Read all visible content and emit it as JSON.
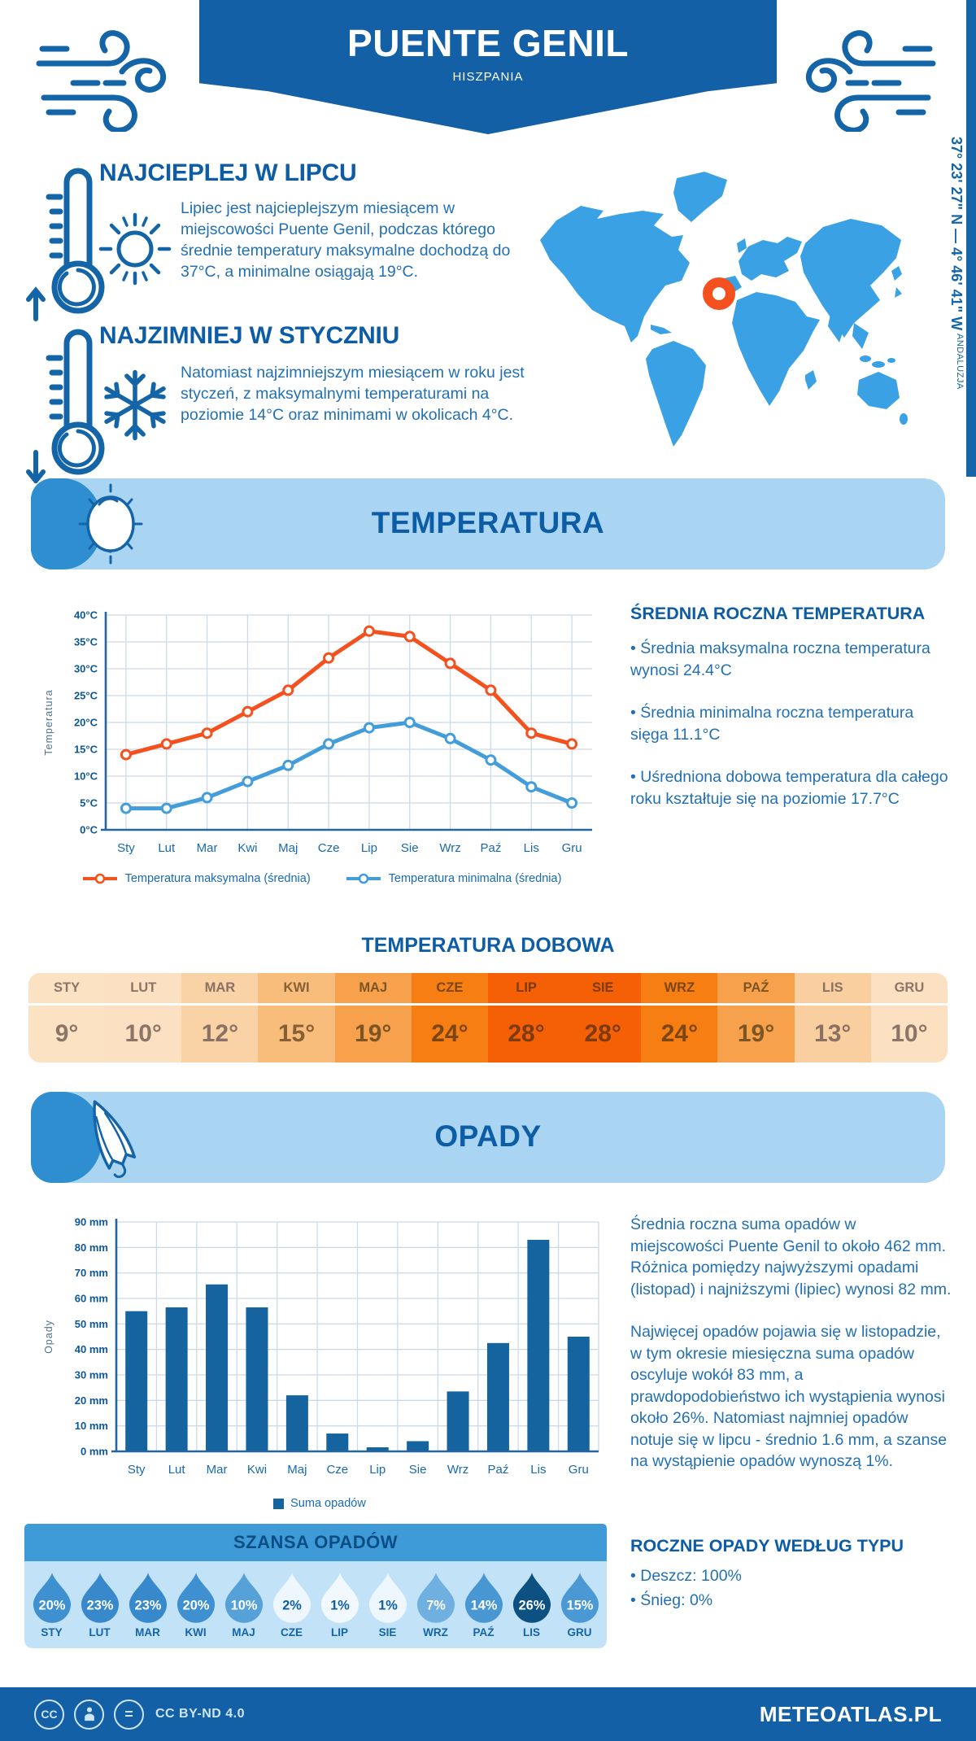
{
  "header": {
    "title": "PUENTE GENIL",
    "subtitle": "HISZPANIA"
  },
  "location": {
    "coordinates": "37° 23' 27\" N — 4° 46' 41\" W",
    "region": "ANDALUZJA"
  },
  "highlights": {
    "warm": {
      "title": "NAJCIEPLEJ W LIPCU",
      "text": "Lipiec jest najcieplejszym miesiącem w miejscowości Puente Genil, podczas którego średnie temperatury maksymalne dochodzą do 37°C, a minimalne osiągają 19°C."
    },
    "cold": {
      "title": "NAJZIMNIEJ W STYCZNIU",
      "text": "Natomiast najzimniejszym miesiącem w roku jest styczeń, z maksymalnymi temperaturami na poziomie 14°C oraz minimami w okolicach 4°C."
    }
  },
  "temperature": {
    "banner_title": "TEMPERATURA",
    "annual": {
      "title": "ŚREDNIA ROCZNA TEMPERATURA",
      "bullets": [
        "Średnia maksymalna roczna temperatura wynosi 24.4°C",
        "Średnia minimalna roczna temperatura sięga 11.1°C",
        "Uśredniona dobowa temperatura dla całego roku kształtuje się na poziomie 17.7°C"
      ]
    },
    "daily": {
      "title": "TEMPERATURA DOBOWA",
      "cells": [
        {
          "month": "STY",
          "value": "9°",
          "bg": "#fbe2c3",
          "fg": "#8a7566"
        },
        {
          "month": "LUT",
          "value": "10°",
          "bg": "#fbe1c1",
          "fg": "#8a7566"
        },
        {
          "month": "MAR",
          "value": "12°",
          "bg": "#f9d2a5",
          "fg": "#8a7163"
        },
        {
          "month": "KWI",
          "value": "15°",
          "bg": "#f8bd7b",
          "fg": "#875f35"
        },
        {
          "month": "MAJ",
          "value": "19°",
          "bg": "#f7a14d",
          "fg": "#7d5524"
        },
        {
          "month": "CZE",
          "value": "24°",
          "bg": "#f67e13",
          "fg": "#7c4612"
        },
        {
          "month": "LIP",
          "value": "28°",
          "bg": "#f55f05",
          "fg": "#7c3b0f"
        },
        {
          "month": "SIE",
          "value": "28°",
          "bg": "#f55f05",
          "fg": "#7c3b0f"
        },
        {
          "month": "WRZ",
          "value": "24°",
          "bg": "#f67e13",
          "fg": "#7c4612"
        },
        {
          "month": "PAŹ",
          "value": "19°",
          "bg": "#f7a14d",
          "fg": "#7d5524"
        },
        {
          "month": "LIS",
          "value": "13°",
          "bg": "#f9cf9f",
          "fg": "#8a7163"
        },
        {
          "month": "GRU",
          "value": "10°",
          "bg": "#fbe1c1",
          "fg": "#8a7566"
        }
      ]
    }
  },
  "precipitation": {
    "banner_title": "OPADY",
    "paragraphs": [
      "Średnia roczna suma opadów w miejscowości Puente Genil to około 462 mm. Różnica pomiędzy najwyższymi opadami (listopad) i najniższymi (lipiec) wynosi 82 mm.",
      "Najwięcej opadów pojawia się w listopadzie, w tym okresie miesięczna suma opadów oscyluje wokół 83 mm, a prawdopodobieństwo ich wystąpienia wynosi około 26%. Natomiast najmniej opadów notuje się w lipcu - średnio 1.6 mm, a szanse na wystąpienie opadów wynoszą 1%."
    ],
    "types": {
      "title": "ROCZNE OPADY WEDŁUG TYPU",
      "items": [
        "Deszcz: 100%",
        "Śnieg: 0%"
      ]
    },
    "chance": {
      "title": "SZANSA OPADÓW",
      "items": [
        {
          "month": "STY",
          "percent": "20%",
          "color": "#3e90d0",
          "text_color": "#ffffff"
        },
        {
          "month": "LUT",
          "percent": "23%",
          "color": "#3889cb",
          "text_color": "#ffffff"
        },
        {
          "month": "MAR",
          "percent": "23%",
          "color": "#3889cb",
          "text_color": "#ffffff"
        },
        {
          "month": "KWI",
          "percent": "20%",
          "color": "#3e90d0",
          "text_color": "#ffffff"
        },
        {
          "month": "MAJ",
          "percent": "10%",
          "color": "#55a1d8",
          "text_color": "#ffffff"
        },
        {
          "month": "CZE",
          "percent": "2%",
          "color": "#eef7fd",
          "text_color": "#0f5f9e"
        },
        {
          "month": "LIP",
          "percent": "1%",
          "color": "#f2f9fe",
          "text_color": "#0f5f9e"
        },
        {
          "month": "SIE",
          "percent": "1%",
          "color": "#eef7fd",
          "text_color": "#0f5f9e"
        },
        {
          "month": "WRZ",
          "percent": "7%",
          "color": "#6fb0e0",
          "text_color": "#ffffff"
        },
        {
          "month": "PAŹ",
          "percent": "14%",
          "color": "#4897d3",
          "text_color": "#ffffff"
        },
        {
          "month": "LIS",
          "percent": "26%",
          "color": "#0d5183",
          "text_color": "#ffffff"
        },
        {
          "month": "GRU",
          "percent": "15%",
          "color": "#4a99d4",
          "text_color": "#ffffff"
        }
      ]
    }
  },
  "chart_data": [
    {
      "type": "line",
      "title": "",
      "ylabel": "Temperatura",
      "categories": [
        "Sty",
        "Lut",
        "Mar",
        "Kwi",
        "Maj",
        "Cze",
        "Lip",
        "Sie",
        "Wrz",
        "Paź",
        "Lis",
        "Gru"
      ],
      "series": [
        {
          "name": "Temperatura maksymalna (średnia)",
          "color": "#f4511e",
          "values": [
            14,
            16,
            18,
            22,
            26,
            32,
            37,
            36,
            31,
            26,
            18,
            16
          ]
        },
        {
          "name": "Temperatura minimalna (średnia)",
          "color": "#449ddb",
          "values": [
            4,
            4,
            6,
            9,
            12,
            16,
            19,
            20,
            17,
            13,
            8,
            5
          ]
        }
      ],
      "ylim": [
        0,
        40
      ],
      "ytick_step": 5,
      "yunit": "°C",
      "grid": true,
      "legend_position": "bottom"
    },
    {
      "type": "bar",
      "title": "",
      "ylabel": "Opady",
      "legend": "Suma opadów",
      "categories": [
        "Sty",
        "Lut",
        "Mar",
        "Kwi",
        "Maj",
        "Cze",
        "Lip",
        "Sie",
        "Wrz",
        "Paź",
        "Lis",
        "Gru"
      ],
      "values": [
        55,
        56.5,
        65.5,
        56.5,
        22,
        7,
        1.6,
        4,
        23.5,
        42.5,
        83,
        45
      ],
      "ylim": [
        0,
        90
      ],
      "ytick_step": 10,
      "yunit": " mm",
      "color": "#15639f",
      "grid": true,
      "legend_position": "bottom"
    }
  ],
  "footer": {
    "license": "CC BY-ND 4.0",
    "site": "METEOATLAS.PL"
  }
}
